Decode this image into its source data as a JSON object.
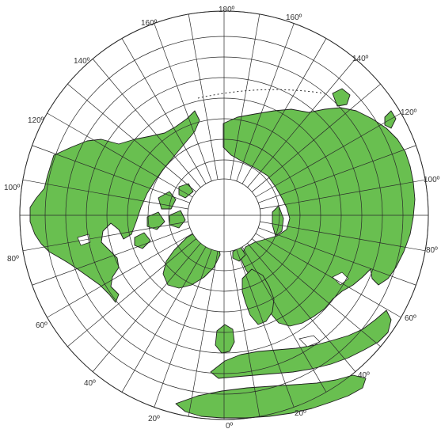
{
  "map": {
    "projection": "polar azimuthal (north pole centered)",
    "land_color": "#69bf50",
    "grid_color": "#2a2a2a",
    "longitude_labels": [
      {
        "id": "lon-180",
        "text": "180º"
      },
      {
        "id": "lon-160w",
        "text": "160º"
      },
      {
        "id": "lon-160e",
        "text": "160º"
      },
      {
        "id": "lon-140w",
        "text": "140º"
      },
      {
        "id": "lon-140e",
        "text": "140º"
      },
      {
        "id": "lon-120w",
        "text": "120º"
      },
      {
        "id": "lon-120e",
        "text": "120º"
      },
      {
        "id": "lon-100w",
        "text": "100º"
      },
      {
        "id": "lon-100e",
        "text": "100º"
      },
      {
        "id": "lon-80w",
        "text": "80º"
      },
      {
        "id": "lon-80e",
        "text": "80º"
      },
      {
        "id": "lon-60w",
        "text": "60º"
      },
      {
        "id": "lon-60e",
        "text": "60º"
      },
      {
        "id": "lon-40w",
        "text": "40º"
      },
      {
        "id": "lon-40e",
        "text": "40º"
      },
      {
        "id": "lon-20w",
        "text": "20º"
      },
      {
        "id": "lon-20e",
        "text": "20º"
      },
      {
        "id": "lon-0",
        "text": "0º"
      }
    ]
  }
}
